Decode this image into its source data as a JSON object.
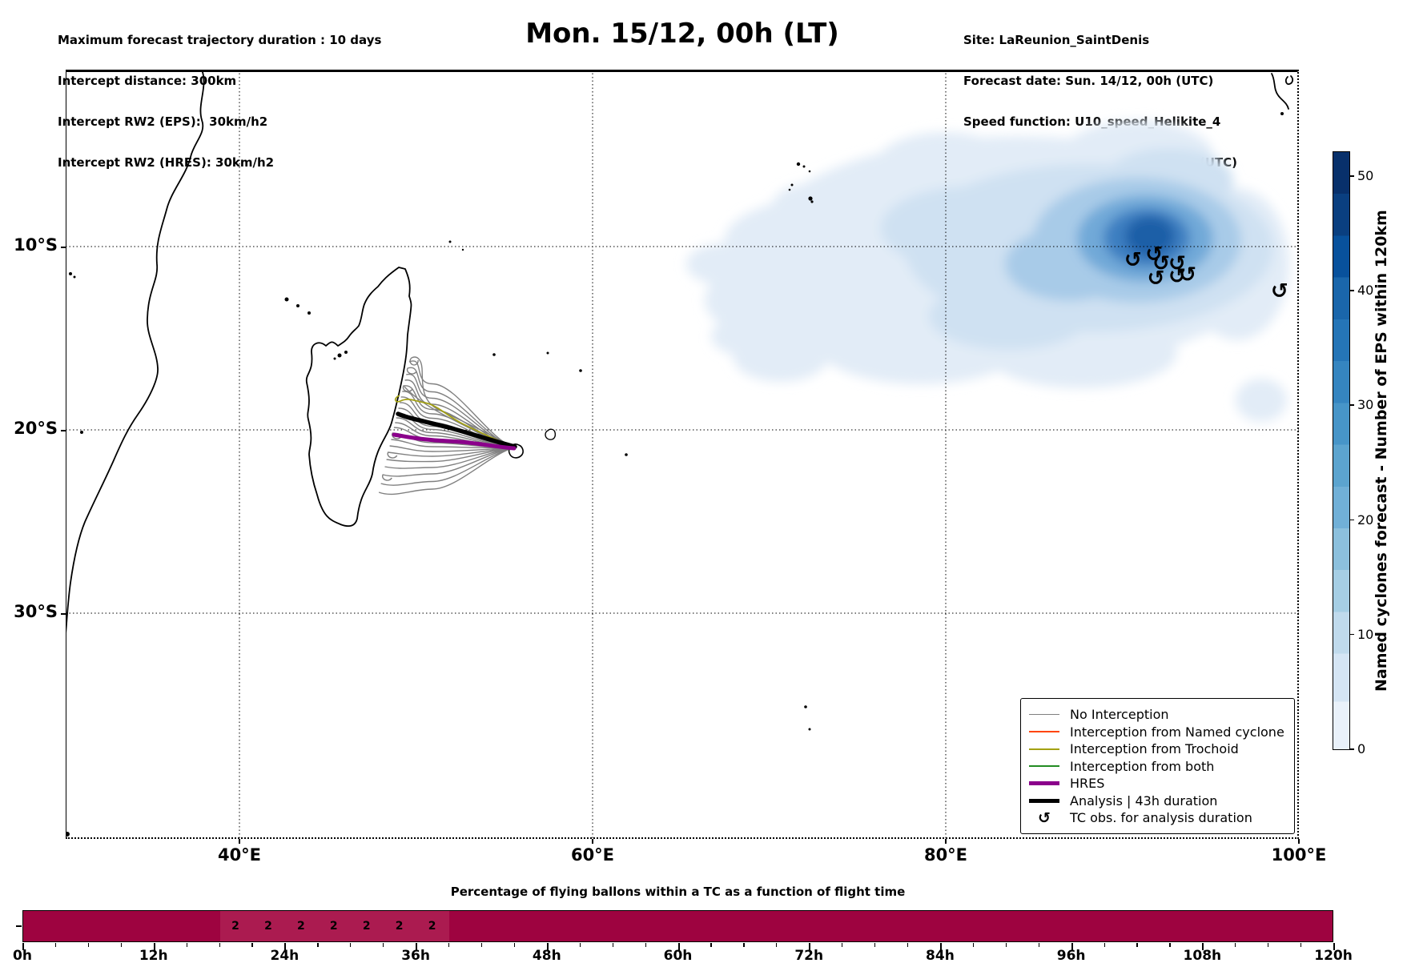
{
  "header_left": {
    "line1": "Maximum forecast trajectory duration : 10 days",
    "line2": "Intercept distance: 300km",
    "line3": "Intercept RW2 (EPS):  30km/h2",
    "line4": "Intercept RW2 (HRES): 30km/h2"
  },
  "header_right": {
    "line1": "Site: LaReunion_SaintDenis",
    "line2": "Forecast date: Sun. 14/12, 00h (UTC)",
    "line3": "Speed function: U10_speed_Helikite_4",
    "line4": "Deployment date: Sun. 14/12, 20h (UTC)"
  },
  "title": "Mon. 15/12, 00h (LT)",
  "map": {
    "lat_labels": [
      "10°S",
      "20°S",
      "30°S"
    ],
    "lon_labels": [
      "40°E",
      "60°E",
      "80°E",
      "100°E"
    ],
    "tc_symbol": "↺"
  },
  "legend": {
    "items": [
      {
        "label": "No Interception",
        "color": "#808080",
        "weight": 1.5,
        "kind": "line"
      },
      {
        "label": "Interception from Named cyclone",
        "color": "#ff4500",
        "weight": 2,
        "kind": "line"
      },
      {
        "label": "Interception from Trochoid",
        "color": "#a3a112",
        "weight": 2,
        "kind": "line"
      },
      {
        "label": "Interception from both",
        "color": "#228b22",
        "weight": 2,
        "kind": "line"
      },
      {
        "label": "HRES",
        "color": "#8b008b",
        "weight": 5,
        "kind": "line"
      },
      {
        "label": "Analysis | 43h duration",
        "color": "#000000",
        "weight": 5,
        "kind": "line"
      },
      {
        "label": "TC obs. for analysis duration",
        "color": "#000000",
        "weight": 0,
        "kind": "symbol"
      }
    ]
  },
  "colorbar": {
    "label": "Named cyclones forecast - Number of EPS within 120km",
    "ticks": [
      0,
      10,
      20,
      30,
      40,
      50
    ],
    "colormap": "Blues"
  },
  "bottom_chart": {
    "title": "Percentage of flying ballons within a TC as a function of flight time",
    "hour_labels": [
      "0h",
      "12h",
      "24h",
      "36h",
      "48h",
      "60h",
      "72h",
      "84h",
      "96h",
      "108h",
      "120h"
    ],
    "bar_color": "#9e0340",
    "segment_color": "#ab1b50",
    "segment_hours": [
      18,
      39
    ],
    "value_labels": [
      {
        "hour": 19.5,
        "text": "2"
      },
      {
        "hour": 22.5,
        "text": "2"
      },
      {
        "hour": 25.5,
        "text": "2"
      },
      {
        "hour": 28.5,
        "text": "2"
      },
      {
        "hour": 31.5,
        "text": "2"
      },
      {
        "hour": 34.5,
        "text": "2"
      },
      {
        "hour": 37.5,
        "text": "2"
      }
    ]
  },
  "chart_data": [
    {
      "type": "heatmap",
      "title": "Mon. 15/12, 00h (LT)",
      "x_axis": {
        "tick_labels": [
          "40°E",
          "60°E",
          "80°E",
          "100°E"
        ],
        "range_deg_east": [
          30,
          100
        ],
        "grid": "dotted"
      },
      "y_axis": {
        "tick_labels": [
          "10°S",
          "20°S",
          "30°S"
        ],
        "range_deg_south": [
          0,
          42
        ],
        "grid": "dotted"
      },
      "colorbar": {
        "label": "Named cyclones forecast - Number of EPS within 120km",
        "ticks": [
          0,
          10,
          20,
          30,
          40,
          50
        ],
        "max_value": 52,
        "colormap": "Blues"
      },
      "heatmap_peak": {
        "lon_e": 93,
        "lat_s": 11,
        "approx_value": 52
      },
      "heatmap_extent": {
        "lon_e": [
          64,
          99
        ],
        "lat_s": [
          3.5,
          18
        ]
      },
      "tc_observations_lonlat": [
        [
          90.6,
          -10.7
        ],
        [
          91.8,
          -10.4
        ],
        [
          92.2,
          -10.9
        ],
        [
          93.1,
          -10.9
        ],
        [
          91.9,
          -11.7
        ],
        [
          93.1,
          -11.6
        ],
        [
          93.7,
          -11.5
        ],
        [
          98.9,
          -12.4
        ]
      ],
      "trajectories": {
        "origin": "Reunion (~55.5E, 21S)",
        "terminus": "Madagascar east coast (~48.5-50E, 18.5-23.5S)",
        "gray_ensemble_members": 24,
        "hres_members": 1,
        "analysis_duration_h": 43
      },
      "legend_entries": [
        "No Interception",
        "Interception from Named cyclone",
        "Interception from Trochoid",
        "Interception from both",
        "HRES",
        "Analysis | 43h duration",
        "TC obs. for analysis duration"
      ]
    },
    {
      "type": "bar",
      "title": "Percentage of flying ballons within a TC as a function of flight time",
      "x_tick_labels": [
        "0h",
        "12h",
        "24h",
        "36h",
        "48h",
        "60h",
        "72h",
        "84h",
        "96h",
        "108h",
        "120h"
      ],
      "x_range_hours": [
        0,
        120
      ],
      "bin_width_hours": 3,
      "bar_description": "full-height crimson band spanning 0h-120h",
      "highlighted_bins": {
        "range_hours": [
          18,
          39
        ],
        "centers_hours": [
          19.5,
          22.5,
          25.5,
          28.5,
          31.5,
          34.5,
          37.5
        ],
        "value_label": "2"
      }
    }
  ]
}
